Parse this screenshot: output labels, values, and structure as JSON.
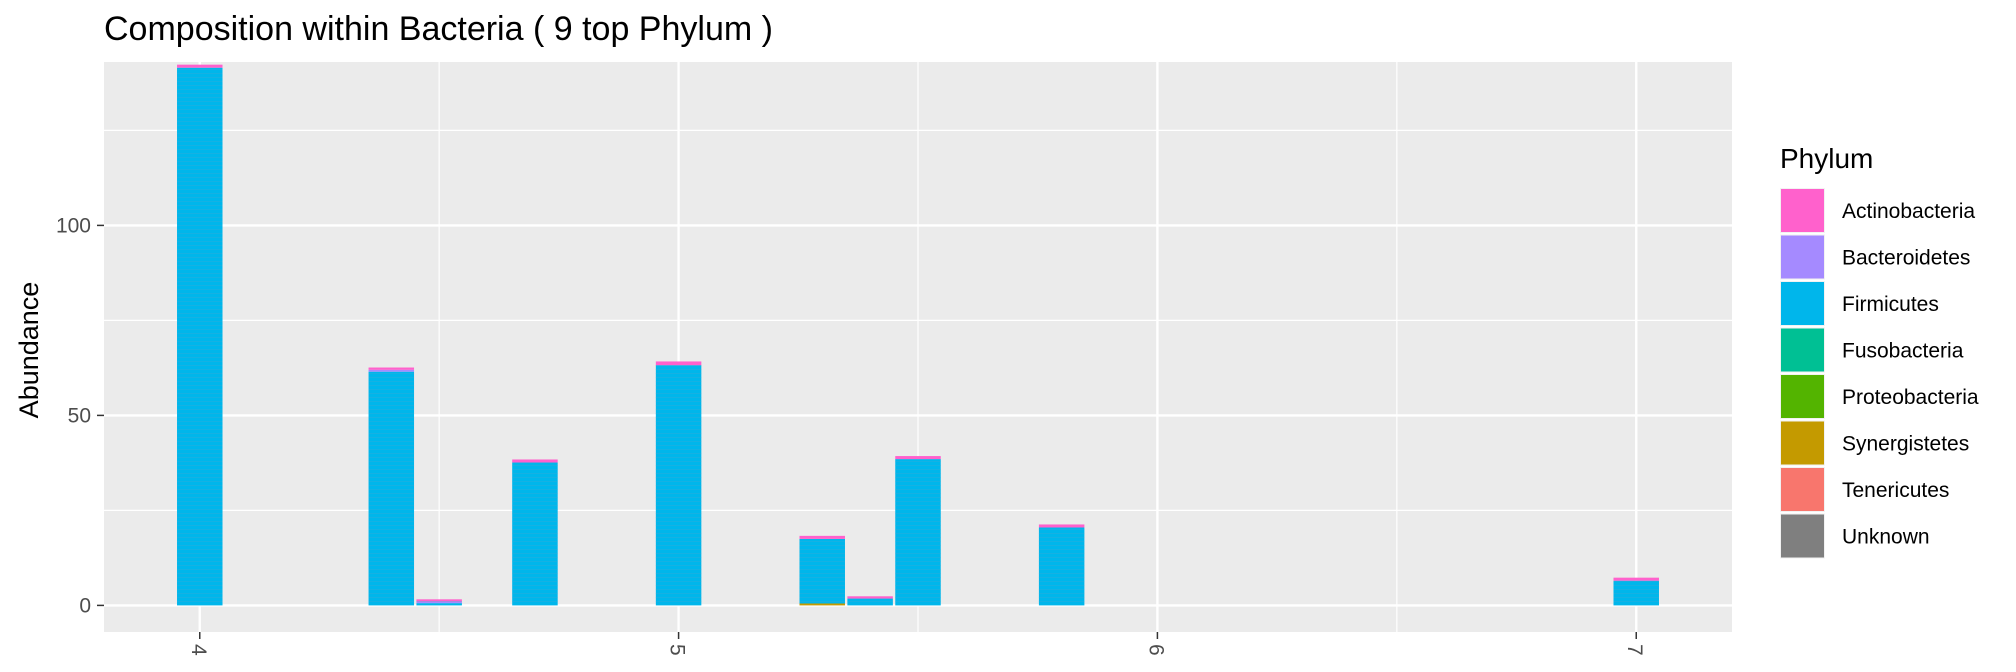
{
  "chart_data": {
    "type": "bar",
    "stacked": true,
    "title": "Composition within Bacteria ( 9 top Phylum )",
    "xlabel": "",
    "ylabel": "Abundance",
    "xlim": [
      3.8,
      7.2
    ],
    "ylim": [
      -7,
      143
    ],
    "x_ticks": [
      4,
      5,
      6,
      7
    ],
    "x_tick_labels": [
      "4",
      "5",
      "6",
      "7"
    ],
    "y_ticks": [
      0,
      50,
      100
    ],
    "y_tick_labels": [
      "0",
      "50",
      "100"
    ],
    "grid": true,
    "legend": {
      "title": "Phylum",
      "placement": "right",
      "entries": [
        {
          "name": "Actinobacteria",
          "color": "#FF61CC"
        },
        {
          "name": "Bacteroidetes",
          "color": "#A58AFF"
        },
        {
          "name": "Firmicutes",
          "color": "#00B6EB"
        },
        {
          "name": "Fusobacteria",
          "color": "#00C094"
        },
        {
          "name": "Proteobacteria",
          "color": "#53B400"
        },
        {
          "name": "Synergistetes",
          "color": "#C49A00"
        },
        {
          "name": "Tenericutes",
          "color": "#F8766D"
        },
        {
          "name": "Unknown",
          "color": "#7F7F7F"
        }
      ]
    },
    "bar_width": 0.095,
    "bars": [
      {
        "x": 4.0,
        "segments": [
          {
            "phylum": "Firmicutes",
            "value": 141.5
          },
          {
            "phylum": "Actinobacteria",
            "value": 0.8
          }
        ]
      },
      {
        "x": 4.4,
        "segments": [
          {
            "phylum": "Firmicutes",
            "value": 61.5
          },
          {
            "phylum": "Bacteroidetes",
            "value": 0.5
          },
          {
            "phylum": "Actinobacteria",
            "value": 0.6
          }
        ]
      },
      {
        "x": 4.5,
        "segments": [
          {
            "phylum": "Firmicutes",
            "value": 0.6
          },
          {
            "phylum": "Bacteroidetes",
            "value": 0.4
          },
          {
            "phylum": "Actinobacteria",
            "value": 0.6
          }
        ]
      },
      {
        "x": 4.7,
        "segments": [
          {
            "phylum": "Firmicutes",
            "value": 37.6
          },
          {
            "phylum": "Actinobacteria",
            "value": 0.8
          }
        ]
      },
      {
        "x": 5.0,
        "segments": [
          {
            "phylum": "Firmicutes",
            "value": 63.2
          },
          {
            "phylum": "Actinobacteria",
            "value": 1.0
          }
        ]
      },
      {
        "x": 5.3,
        "segments": [
          {
            "phylum": "Synergistetes",
            "value": 0.5
          },
          {
            "phylum": "Firmicutes",
            "value": 17.0
          },
          {
            "phylum": "Actinobacteria",
            "value": 0.8
          }
        ]
      },
      {
        "x": 5.4,
        "segments": [
          {
            "phylum": "Firmicutes",
            "value": 1.8
          },
          {
            "phylum": "Actinobacteria",
            "value": 0.6
          }
        ]
      },
      {
        "x": 5.5,
        "segments": [
          {
            "phylum": "Firmicutes",
            "value": 38.5
          },
          {
            "phylum": "Actinobacteria",
            "value": 0.8
          }
        ]
      },
      {
        "x": 5.8,
        "segments": [
          {
            "phylum": "Firmicutes",
            "value": 20.5
          },
          {
            "phylum": "Actinobacteria",
            "value": 0.8
          }
        ]
      },
      {
        "x": 7.0,
        "segments": [
          {
            "phylum": "Firmicutes",
            "value": 6.5
          },
          {
            "phylum": "Actinobacteria",
            "value": 0.8
          }
        ]
      }
    ]
  }
}
